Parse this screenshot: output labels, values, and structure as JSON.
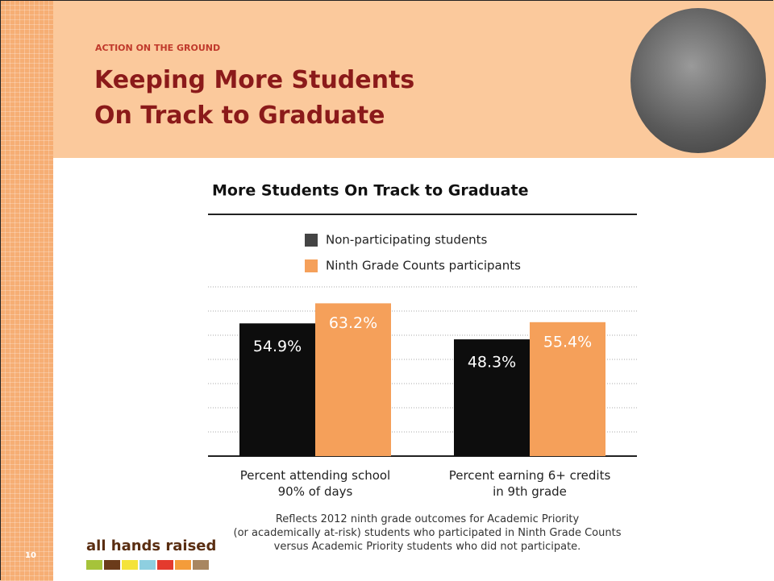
{
  "slide": {
    "section": "ACTION ON THE GROUND",
    "title": "Keeping More Students\nOn Track to Graduate",
    "footnote": "Reflects 2012 ninth grade outcomes for Academic Priority\n(or academically at-risk) students who participated in Ninth Grade Counts\nversus Academic Priority students who did not participate.",
    "logo": "all hands raised",
    "page_number": "10"
  },
  "chart_data": {
    "type": "bar",
    "title": "More Students On Track to Graduate",
    "categories": [
      "Percent attending school\n90% of days",
      "Percent earning 6+ credits\nin 9th grade"
    ],
    "series": [
      {
        "name": "Non-participating students",
        "color": "#0d0d0d",
        "legend_color": "#444444",
        "values": [
          54.9,
          48.3
        ],
        "value_labels": [
          "54.9%",
          "48.3%"
        ]
      },
      {
        "name": "Ninth Grade Counts participants",
        "color": "#f5a05a",
        "legend_color": "#f5a05a",
        "values": [
          63.2,
          55.4
        ],
        "value_labels": [
          "63.2%",
          "55.4%"
        ]
      }
    ],
    "ylim": [
      0,
      70
    ],
    "yticks": [
      10,
      20,
      30,
      40,
      50,
      60,
      70
    ],
    "grid": true,
    "show_tick_labels": false
  }
}
